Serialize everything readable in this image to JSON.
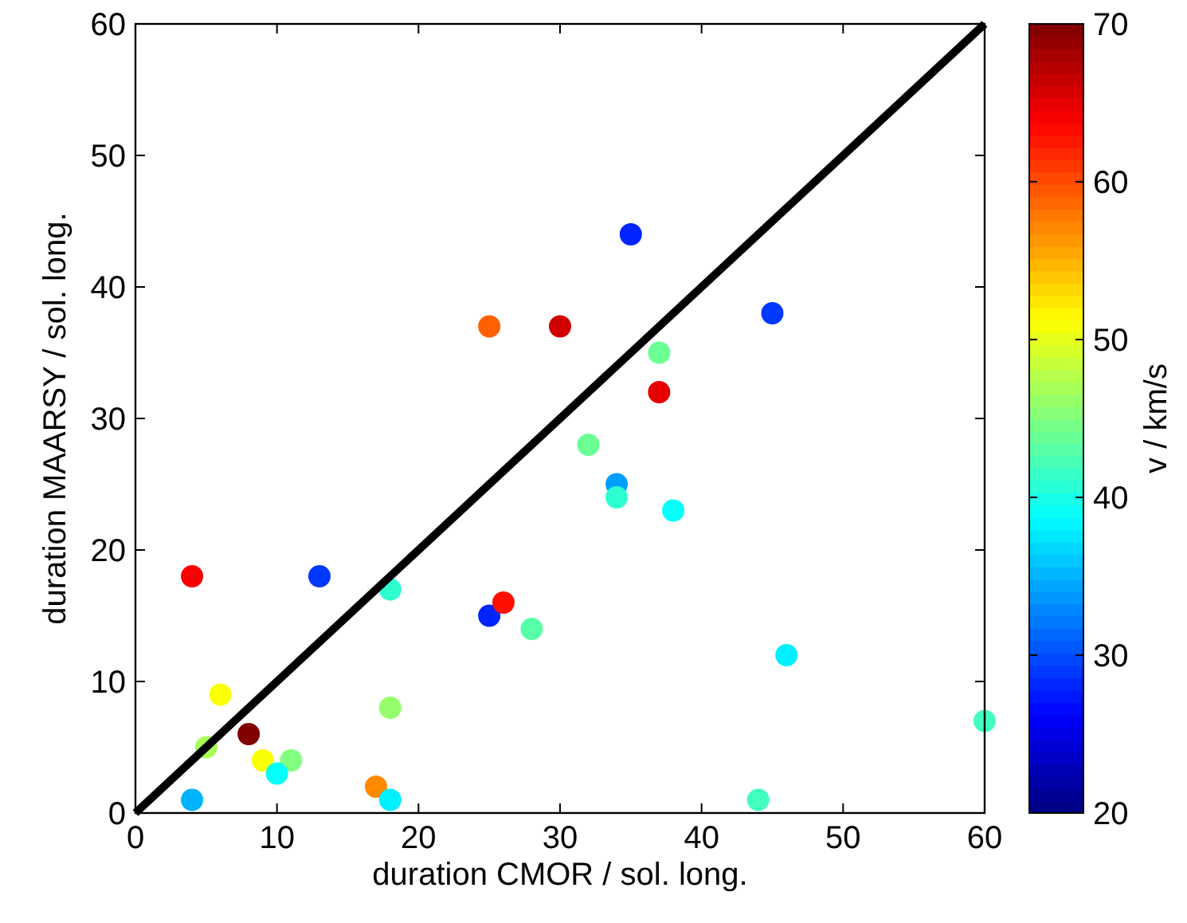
{
  "chart_data": {
    "type": "scatter",
    "xlabel": "duration CMOR / sol. long.",
    "ylabel": "duration MAARSY / sol. long.",
    "clabel": "v / km/s",
    "xlim": [
      0,
      60
    ],
    "ylim": [
      0,
      60
    ],
    "xticks": [
      0,
      10,
      20,
      30,
      40,
      50,
      60
    ],
    "yticks": [
      0,
      10,
      20,
      30,
      40,
      50,
      60
    ],
    "clim": [
      20,
      70
    ],
    "cticks": [
      20,
      30,
      40,
      50,
      60,
      70
    ],
    "grid": false,
    "series": [
      {
        "marker": "circle",
        "colors": [
          "#fa0000",
          "#0038ff",
          "#2effd1",
          "#0024ff",
          "#ff0f00",
          "#57ffa8",
          "#faff05",
          "#800000",
          "#a8ff57",
          "#faff05",
          "#80ff80",
          "#05fffa",
          "#00b3ff",
          "#94ff6b",
          "#ff8a00",
          "#00f0ff",
          "#ff6100",
          "#d10000",
          "#0024ff",
          "#0038ff",
          "#6bff94",
          "#e60000",
          "#6bff94",
          "#009eff",
          "#2effd1",
          "#05fffa",
          "#00f0ff",
          "#42ffbd",
          "#42ffbd"
        ],
        "x": [
          4,
          13,
          18,
          25,
          26,
          28,
          6,
          8,
          5,
          9,
          11,
          10,
          4,
          18,
          17,
          18,
          25,
          30,
          35,
          45,
          37,
          37,
          32,
          34,
          34,
          38,
          46,
          60,
          44
        ],
        "values": [
          18,
          18,
          17,
          15,
          16,
          14,
          9,
          6,
          5,
          4,
          4,
          3,
          1,
          8,
          2,
          1,
          37,
          37,
          44,
          38,
          35,
          32,
          28,
          25,
          24,
          23,
          12,
          7,
          1
        ],
        "cvalues": [
          64,
          29,
          41,
          28,
          63,
          43,
          51,
          70,
          47,
          51,
          45,
          39,
          35,
          46,
          57,
          38,
          59,
          66,
          28,
          29,
          44,
          65,
          44,
          34,
          41,
          39,
          38,
          42,
          42
        ]
      },
      {
        "type": "line",
        "color": "#000000",
        "x": [
          0,
          60
        ],
        "values": [
          0,
          60
        ],
        "line_style": "solid",
        "marker": "none"
      }
    ]
  }
}
